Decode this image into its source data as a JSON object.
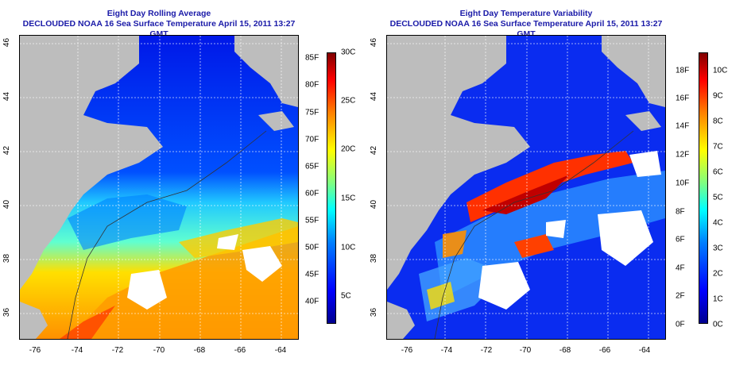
{
  "left_panel": {
    "title_line1": "Eight Day Rolling Average",
    "title_line2": "DECLOUDED NOAA 16 Sea Surface Temperature April 15, 2011 13:27 GMT",
    "x_ticks": [
      "-76",
      "-74",
      "-72",
      "-70",
      "-68",
      "-66",
      "-64"
    ],
    "y_ticks": [
      "36",
      "38",
      "40",
      "42",
      "44",
      "46"
    ],
    "colorbar_F": [
      "85F",
      "80F",
      "75F",
      "70F",
      "65F",
      "60F",
      "55F",
      "50F",
      "45F",
      "40F"
    ],
    "colorbar_C": [
      "30C",
      "25C",
      "20C",
      "15C",
      "10C",
      "5C"
    ]
  },
  "right_panel": {
    "title_line1": "Eight Day Temperature Variability",
    "title_line2": "DECLOUDED NOAA 16 Sea Surface Temperature April 15, 2011 13:27 GMT",
    "x_ticks": [
      "-76",
      "-74",
      "-72",
      "-70",
      "-68",
      "-66",
      "-64"
    ],
    "y_ticks": [
      "36",
      "38",
      "40",
      "42",
      "44",
      "46"
    ],
    "colorbar_F": [
      "18F",
      "16F",
      "14F",
      "12F",
      "10F",
      "8F",
      "6F",
      "4F",
      "2F",
      "0F"
    ],
    "colorbar_C": [
      "10C",
      "9C",
      "8C",
      "7C",
      "6C",
      "5C",
      "4C",
      "3C",
      "2C",
      "1C",
      "0C"
    ]
  },
  "colors": {
    "title": "#1a1aa8",
    "land": "#bdbdbd",
    "grid": "#ffffff"
  }
}
